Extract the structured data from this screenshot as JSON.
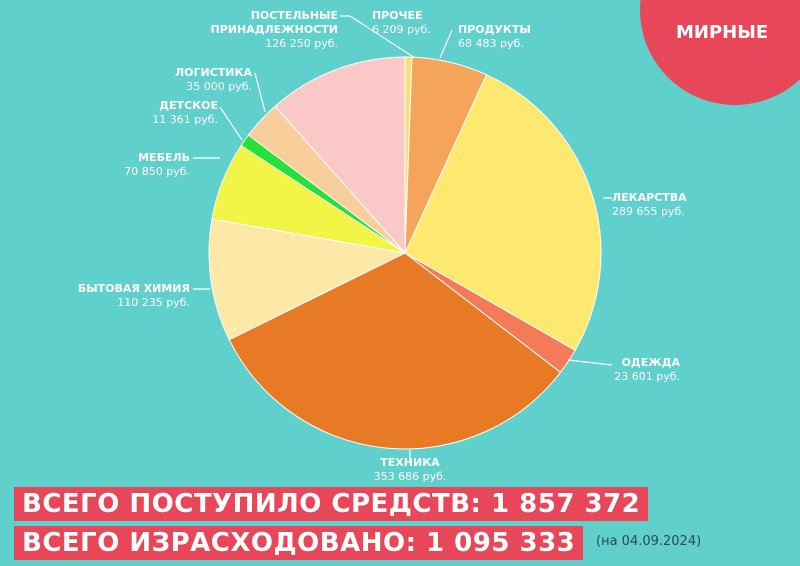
{
  "chart_data": {
    "type": "pie",
    "badge": "МИРНЫЕ",
    "categories": [
      "ПРОЧЕЕ",
      "ПРОДУКТЫ",
      "ЛЕКАРСТВА",
      "ОДЕЖДА",
      "ТЕХНИКА",
      "БЫТОВАЯ ХИМИЯ",
      "МЕБЕЛЬ",
      "ДЕТСКОЕ",
      "ЛОГИСТИКА",
      "ПОСТЕЛЬНЫЕ ПРИНАДЛЕЖНОСТИ"
    ],
    "values": [
      6209,
      68483,
      289655,
      23601,
      353686,
      110235,
      70850,
      11361,
      35000,
      126250
    ],
    "value_labels": [
      "6 209 руб.",
      "68 483 руб.",
      "289 655 руб.",
      "23 601 руб.",
      "353 686 руб.",
      "110 235 руб.",
      "70 850 руб.",
      "11 361 руб.",
      "35 000 руб.",
      "126 250 руб."
    ],
    "colors": [
      "#f6e27a",
      "#f5a55a",
      "#fde870",
      "#f47a5a",
      "#e97a25",
      "#fde8a8",
      "#f2f545",
      "#28e03a",
      "#f8cf9a",
      "#fbc8c8"
    ],
    "totals": [
      "ВСЕГО ПОСТУПИЛО СРЕДСТВ: 1 857 372",
      "ВСЕГО ИЗРАСХОДОВАНО: 1 095 333"
    ],
    "date_note": "(на 04.09.2024)"
  }
}
